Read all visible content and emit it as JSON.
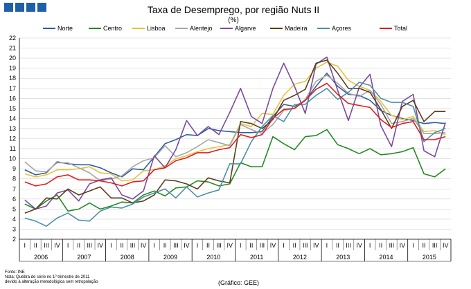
{
  "chart_data": {
    "type": "line",
    "title": "Taxa de Desemprego, por região Nuts II",
    "subtitle": "(%)",
    "ylim": [
      2,
      22
    ],
    "yticks": [
      2,
      3,
      4,
      5,
      6,
      7,
      8,
      9,
      10,
      11,
      12,
      13,
      14,
      15,
      16,
      17,
      18,
      19,
      20,
      21,
      22
    ],
    "years": [
      "2006",
      "2007",
      "2008",
      "2009",
      "2010",
      "2011",
      "2012",
      "2013",
      "2014",
      "2015"
    ],
    "quarter_labels": [
      "I",
      "II",
      "III",
      "IV"
    ],
    "series": [
      {
        "name": "Norte",
        "color": "#2e5d9e",
        "values": [
          8.9,
          8.4,
          8.6,
          9.7,
          9.5,
          9.4,
          9.4,
          9.1,
          8.6,
          8.2,
          9.0,
          8.9,
          10.2,
          11.5,
          11.9,
          12.4,
          12.3,
          13.0,
          12.8,
          12.7,
          12.6,
          12.6,
          12.7,
          14.2,
          15.4,
          15.2,
          15.8,
          17.2,
          18.5,
          17.2,
          16.4,
          16.3,
          15.8,
          14.8,
          14.3,
          14.0,
          13.8,
          13.5,
          13.6,
          13.5
        ]
      },
      {
        "name": "Centro",
        "color": "#238b23",
        "values": [
          5.5,
          5.0,
          5.8,
          6.4,
          4.8,
          5.0,
          5.6,
          5.0,
          5.3,
          5.7,
          5.6,
          6.4,
          6.8,
          6.3,
          7.1,
          7.2,
          7.8,
          7.7,
          7.3,
          7.5,
          9.6,
          9.2,
          9.2,
          12.2,
          11.5,
          10.9,
          12.2,
          12.3,
          12.9,
          11.4,
          11.0,
          10.5,
          11.0,
          10.4,
          10.5,
          10.7,
          11.1,
          8.5,
          8.2,
          9.0
        ]
      },
      {
        "name": "Lisboa",
        "color": "#e8c23a",
        "values": [
          8.5,
          8.2,
          8.4,
          8.9,
          8.9,
          9.0,
          9.2,
          8.6,
          8.5,
          7.8,
          7.9,
          8.8,
          8.9,
          9.3,
          10.0,
          10.3,
          10.7,
          11.0,
          11.2,
          11.4,
          13.5,
          13.2,
          14.5,
          14.4,
          16.3,
          17.4,
          17.7,
          19.0,
          19.6,
          19.2,
          17.8,
          17.2,
          16.8,
          15.7,
          14.3,
          13.9,
          14.2,
          12.7,
          12.8,
          12.4
        ]
      },
      {
        "name": "Alentejo",
        "color": "#a6a6a6",
        "values": [
          9.7,
          8.8,
          8.7,
          9.6,
          9.6,
          9.1,
          8.6,
          7.8,
          8.0,
          8.3,
          9.2,
          9.8,
          10.1,
          11.3,
          10.2,
          10.6,
          11.2,
          11.9,
          11.6,
          11.3,
          13.4,
          12.9,
          12.5,
          13.4,
          14.8,
          15.0,
          15.9,
          17.7,
          18.3,
          17.5,
          16.5,
          16.2,
          16.8,
          15.4,
          13.5,
          13.7,
          14.0,
          12.5,
          12.5,
          12.6
        ]
      },
      {
        "name": "Algarve",
        "color": "#7b4a9e",
        "values": [
          5.9,
          5.0,
          5.3,
          6.6,
          6.9,
          5.8,
          7.5,
          7.9,
          8.1,
          6.4,
          6.0,
          6.8,
          10.3,
          9.1,
          10.9,
          13.8,
          12.3,
          13.2,
          12.4,
          14.6,
          17.0,
          14.2,
          13.5,
          17.0,
          19.5,
          17.2,
          14.5,
          19.4,
          20.1,
          16.8,
          13.8,
          17.1,
          18.4,
          13.3,
          11.2,
          15.7,
          16.4,
          10.8,
          10.2,
          13.6
        ]
      },
      {
        "name": "Madeira",
        "color": "#5c3d1e",
        "values": [
          4.6,
          5.0,
          6.1,
          6.0,
          7.0,
          6.4,
          6.8,
          7.2,
          6.1,
          6.1,
          5.6,
          5.8,
          6.4,
          7.9,
          7.8,
          7.5,
          7.0,
          8.1,
          7.8,
          7.6,
          13.7,
          13.5,
          13.0,
          13.9,
          15.8,
          16.3,
          16.9,
          19.5,
          19.8,
          18.5,
          17.0,
          17.0,
          16.6,
          14.9,
          13.0,
          15.2,
          15.8,
          13.7,
          14.7,
          14.7
        ]
      },
      {
        "name": "Açores",
        "color": "#4a90a8",
        "values": [
          4.1,
          3.8,
          3.3,
          4.1,
          4.6,
          3.9,
          3.8,
          4.8,
          5.2,
          5.1,
          5.5,
          6.2,
          6.6,
          7.0,
          6.1,
          7.2,
          6.2,
          6.6,
          6.9,
          9.5,
          9.5,
          11.7,
          13.2,
          14.3,
          13.7,
          15.4,
          15.4,
          16.3,
          17.0,
          15.9,
          16.6,
          17.6,
          17.3,
          16.0,
          15.6,
          15.6,
          15.2,
          11.7,
          12.6,
          13.0
        ]
      },
      {
        "name": "Total",
        "color": "#e01b1b",
        "values": [
          7.7,
          7.3,
          7.5,
          8.2,
          8.4,
          7.9,
          7.9,
          7.8,
          7.6,
          7.3,
          7.7,
          7.8,
          8.9,
          9.1,
          9.8,
          10.1,
          10.6,
          10.6,
          10.9,
          11.1,
          12.4,
          12.1,
          12.4,
          14.0,
          14.9,
          15.0,
          15.8,
          16.9,
          17.5,
          16.4,
          15.5,
          15.3,
          15.1,
          13.9,
          13.1,
          13.5,
          13.7,
          11.9,
          11.9,
          12.2
        ]
      }
    ]
  },
  "footer": {
    "source": "Fonte: INE",
    "note": "Nota: Quebra de série no 1º trimestre de 2011",
    "note2": "devido à alteração metodológica sem retropolação",
    "credit": "(Gráfico: GEE)"
  }
}
